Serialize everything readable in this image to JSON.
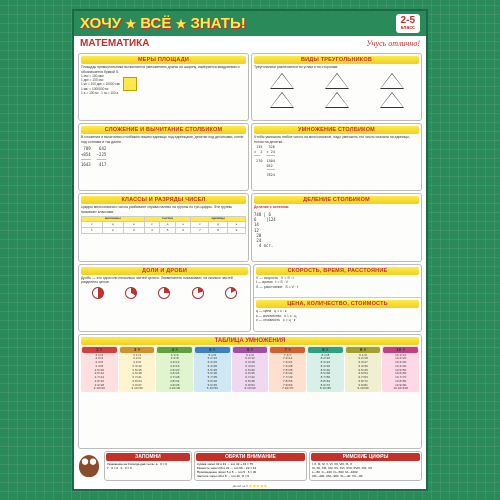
{
  "header": {
    "title": "ХОЧУ ВСЁ ЗНАТЬ!",
    "grade": "2-5",
    "grade_label": "класс"
  },
  "subheader": {
    "subject": "МАТЕМАТИКА",
    "motto": "Учусь отлично!"
  },
  "sections": {
    "area": {
      "title": "МЕРЫ ПЛОЩАДИ",
      "text": "Площадь прямоугольника вычисляется умножением длины на ширину, измеряется квадратами и обозначается буквой S.",
      "formulas": "1 см² = 100 мм²\n1 дм² = 100 см²\n1 м² = 100 дм² = 10000 см²\n1 км² = 1000000 м²\n1 а = 100 м²   1 га = 100 а"
    },
    "triangles": {
      "title": "ВИДЫ ТРЕУГОЛЬНИКОВ",
      "text": "Треугольники различаются по углам и по сторонам.",
      "labels": [
        "Прямоугольный",
        "Тупоугольный",
        "Остроугольный",
        "Равносторонний",
        "Равнобедренный",
        "Разносторонний"
      ]
    },
    "addition": {
      "title": "СЛОЖЕНИЕ И ВЫЧИТАНИЕ СТОЛБИКОМ",
      "text": "В сложении и вычитании столбиком пишем единицы под единицами, десятки под десятками, сотни под сотнями и так далее."
    },
    "mult_col": {
      "title": "УМНОЖЕНИЕ СТОЛБИКОМ",
      "text": "Чтобы умножить любое число на многозначное, надо умножить это число сначала на единицы, потом на десятки..."
    },
    "classes": {
      "title": "КЛАССЫ И РАЗРЯДЫ ЧИСЕЛ",
      "text": "Цифры многозначного числа разбивают справа налево на группы по три цифры. Эти группы называют классами."
    },
    "division": {
      "title": "ДЕЛЕНИЕ СТОЛБИКОМ",
      "text": "Деление с остатком"
    },
    "fractions": {
      "title": "ДОЛИ И ДРОБИ",
      "text": "Дробь — это одна или несколько частей целого. Знаменатель показывает, на сколько частей разделено целое."
    },
    "speed": {
      "title": "СКОРОСТЬ, ВРЕМЯ, РАССТОЯНИЕ",
      "formulas": "V — скорость   V = S : t\nt — время   t = S : V\nS — расстояние   S = V · t"
    },
    "price": {
      "title": "ЦЕНА, КОЛИЧЕСТВО, СТОИМОСТЬ",
      "formulas": "ц — цена   ц = с : к\nк — количество   к = с : ц\nс — стоимость   с = ц · к"
    },
    "mult_table": {
      "title": "ТАБЛИЦА УМНОЖЕНИЯ",
      "tables": [
        {
          "n": 2,
          "bg": "#ffe0e0",
          "hc": "#d04040"
        },
        {
          "n": 3,
          "bg": "#fff4d0",
          "hc": "#d09030"
        },
        {
          "n": 4,
          "bg": "#e0f4d0",
          "hc": "#60a040"
        },
        {
          "n": 5,
          "bg": "#d0e8f4",
          "hc": "#4080c0"
        },
        {
          "n": 6,
          "bg": "#f0d8f0",
          "hc": "#a050a0"
        },
        {
          "n": 7,
          "bg": "#ffe0d0",
          "hc": "#d06030"
        },
        {
          "n": 8,
          "bg": "#d8f0e8",
          "hc": "#30a080"
        },
        {
          "n": 9,
          "bg": "#f0f0d0",
          "hc": "#a0a030"
        },
        {
          "n": 10,
          "bg": "#ffd8e8",
          "hc": "#c04080"
        }
      ]
    },
    "remember": {
      "title": "ЗАПОМНИ",
      "text": "Умножение на 0 всегда даёт ноль: a · 0 = 0\n7 · 0 = 0   0 · 0 = 0"
    },
    "attention": {
      "title": "ОБРАТИ ВНИМАНИЕ",
      "text": "Сумма чисел 32 и 43 → это 32 + 43 = 75\nРазность чисел 66 и 22 → это 66 − 22 = 44\nПроизведение чисел 5 и 6 → это 5 · 6 = 30\nЧастное чисел 40 и 8 → это 40 : 8 = 5"
    },
    "roman": {
      "title": "РИМСКИЕ ЦИФРЫ",
      "text": "I, II, III, IV, V, VI, VII, VIII, IX, X\nXI, XII, XIII, XIV, XV, XVI, XVII, XVIII, XIX, XX\nL—50  C—100  D—500  M—1000\nCD—400  CM—900  XL—40  XC—90"
    }
  },
  "colors": {
    "bg": "#2a8a5a",
    "accent_red": "#c4302b",
    "accent_yellow": "#ffe84a"
  }
}
